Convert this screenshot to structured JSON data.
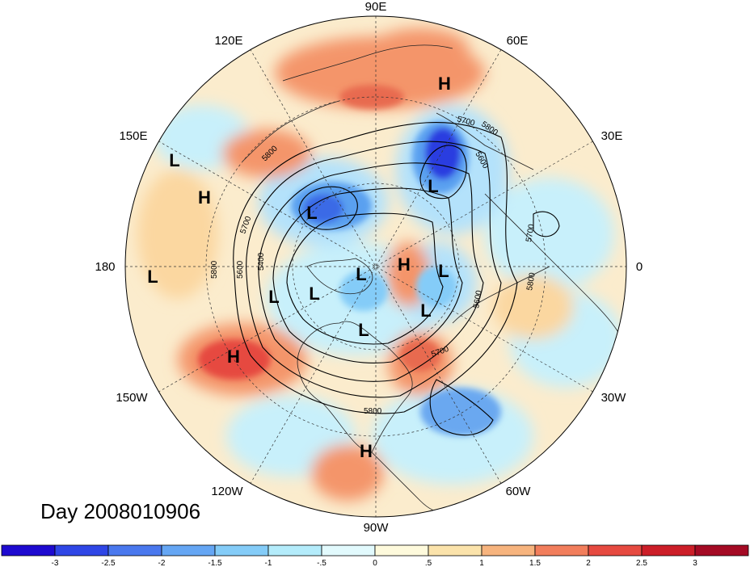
{
  "map": {
    "date_label": "Day 2008010906",
    "longitude_labels": [
      "90E",
      "60E",
      "30E",
      "0",
      "30W",
      "60W",
      "90W",
      "120W",
      "150W",
      "180",
      "150E",
      "120E"
    ],
    "pressure_centers": [
      {
        "type": "H"
      },
      {
        "type": "L"
      },
      {
        "type": "H"
      },
      {
        "type": "L"
      },
      {
        "type": "L"
      },
      {
        "type": "L"
      },
      {
        "type": "H"
      },
      {
        "type": "L"
      },
      {
        "type": "L"
      },
      {
        "type": "L"
      },
      {
        "type": "L"
      },
      {
        "type": "L"
      },
      {
        "type": "L"
      },
      {
        "type": "H"
      },
      {
        "type": "H"
      }
    ],
    "contour_labels": [
      "5800",
      "5700",
      "5600",
      "5400",
      "5800",
      "5700",
      "5600",
      "5800",
      "5700",
      "5800",
      "5700",
      "5600",
      "5800"
    ],
    "anomaly_colors": {
      "strong_negative": "#1a1ad6",
      "negative": "#5aa0f0",
      "weak_negative": "#c8f0fb",
      "weak_positive": "#fbe5b5",
      "positive": "#f4956a",
      "strong_positive": "#d93030"
    }
  },
  "colorbar": {
    "tick_labels": [
      "-3",
      "-2.5",
      "-2",
      "-1.5",
      "-1",
      "-.5",
      "0",
      ".5",
      "1",
      "1.5",
      "2",
      "2.5",
      "3"
    ],
    "colors": [
      "#1e0ad0",
      "#2f46e6",
      "#4a78ee",
      "#65a6f4",
      "#84ccf8",
      "#b4ecfb",
      "#e2fafd",
      "#fefadc",
      "#fbe3ab",
      "#f7b47e",
      "#f27e5c",
      "#e64a40",
      "#cc1e28",
      "#a40a24"
    ]
  }
}
